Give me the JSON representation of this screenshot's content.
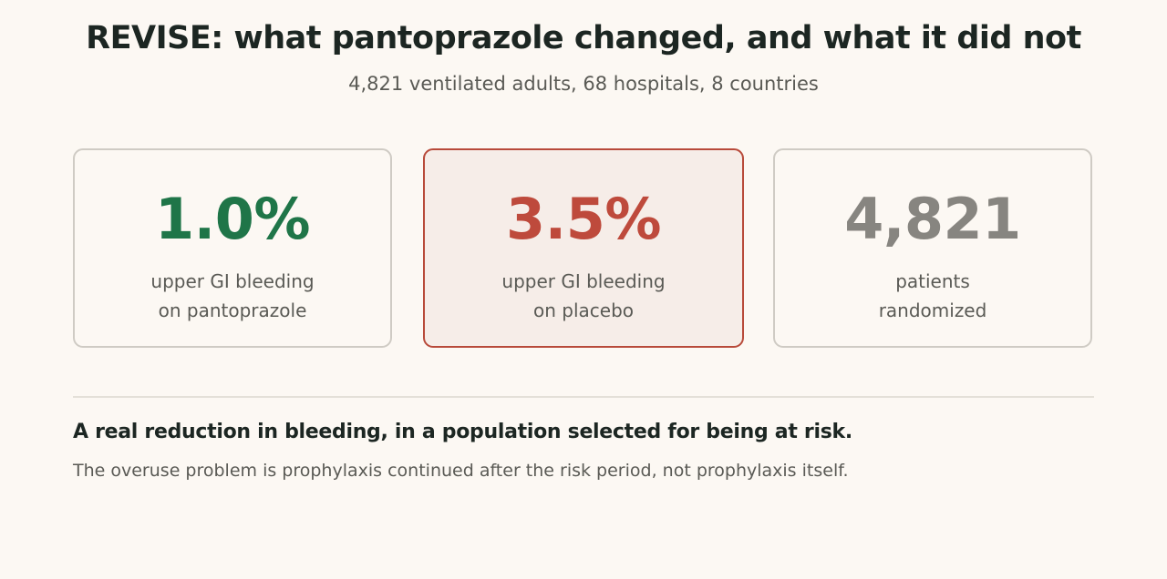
{
  "header": {
    "title": "REVISE: what pantoprazole changed, and what it did not",
    "subtitle": "4,821 ventilated adults, 68 hospitals, 8 countries"
  },
  "cards": [
    {
      "value": "1.0%",
      "label_line1": "upper GI bleeding",
      "label_line2": "on pantoprazole",
      "accent": "#1f7548"
    },
    {
      "value": "3.5%",
      "label_line1": "upper GI bleeding",
      "label_line2": "on placebo",
      "accent": "#be4a3c",
      "highlighted": true
    },
    {
      "value": "4,821",
      "label_line1": "patients",
      "label_line2": "randomized",
      "accent": "#878580"
    }
  ],
  "summary": {
    "headline": "A real reduction in bleeding, in a population selected for being at risk.",
    "note": "The overuse problem is prophylaxis continued after the risk period, not prophylaxis itself."
  }
}
